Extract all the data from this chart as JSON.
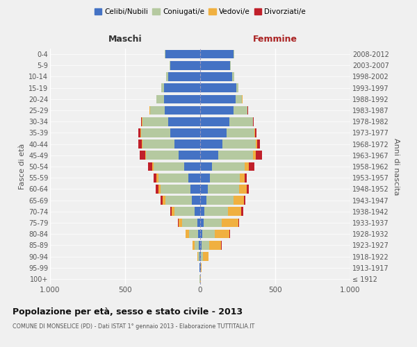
{
  "age_groups": [
    "100+",
    "95-99",
    "90-94",
    "85-89",
    "80-84",
    "75-79",
    "70-74",
    "65-69",
    "60-64",
    "55-59",
    "50-54",
    "45-49",
    "40-44",
    "35-39",
    "30-34",
    "25-29",
    "20-24",
    "15-19",
    "10-14",
    "5-9",
    "0-4"
  ],
  "birth_years": [
    "≤ 1912",
    "1913-1917",
    "1918-1922",
    "1923-1927",
    "1928-1932",
    "1933-1937",
    "1938-1942",
    "1943-1947",
    "1948-1952",
    "1953-1957",
    "1958-1962",
    "1963-1967",
    "1968-1972",
    "1973-1977",
    "1978-1982",
    "1983-1987",
    "1988-1992",
    "1993-1997",
    "1998-2002",
    "2003-2007",
    "2008-2012"
  ],
  "colors": {
    "celibi": "#4472c4",
    "coniugati": "#b5c9a0",
    "vedovi": "#f0b040",
    "divorziati": "#c0202a"
  },
  "males": {
    "celibi": [
      2,
      3,
      5,
      8,
      15,
      20,
      35,
      55,
      65,
      80,
      105,
      145,
      170,
      200,
      215,
      235,
      240,
      240,
      215,
      200,
      230
    ],
    "coniugati": [
      1,
      2,
      10,
      30,
      60,
      100,
      135,
      175,
      200,
      200,
      205,
      215,
      215,
      195,
      170,
      100,
      50,
      20,
      10,
      5,
      5
    ],
    "vedovi": [
      0,
      1,
      5,
      15,
      20,
      25,
      20,
      20,
      15,
      10,
      10,
      8,
      5,
      3,
      2,
      1,
      1,
      0,
      0,
      0,
      0
    ],
    "divorziati": [
      0,
      0,
      0,
      0,
      1,
      3,
      10,
      15,
      15,
      20,
      25,
      35,
      20,
      12,
      8,
      3,
      1,
      0,
      0,
      0,
      0
    ]
  },
  "females": {
    "celibi": [
      1,
      3,
      5,
      10,
      15,
      25,
      30,
      40,
      50,
      65,
      80,
      120,
      150,
      175,
      195,
      220,
      235,
      240,
      215,
      200,
      220
    ],
    "coniugati": [
      1,
      3,
      15,
      50,
      80,
      120,
      155,
      180,
      210,
      200,
      215,
      230,
      220,
      185,
      155,
      95,
      45,
      15,
      10,
      5,
      5
    ],
    "vedovi": [
      1,
      5,
      35,
      80,
      100,
      110,
      90,
      70,
      50,
      30,
      30,
      20,
      10,
      5,
      3,
      2,
      1,
      0,
      0,
      0,
      0
    ],
    "divorziati": [
      0,
      0,
      1,
      2,
      3,
      5,
      10,
      12,
      15,
      15,
      35,
      40,
      20,
      8,
      5,
      2,
      1,
      0,
      0,
      0,
      0
    ]
  },
  "title": "Popolazione per età, sesso e stato civile - 2013",
  "subtitle": "COMUNE DI MONSELICE (PD) - Dati ISTAT 1° gennaio 2013 - Elaborazione TUTTITALIA.IT",
  "xlabel_left": "Maschi",
  "xlabel_right": "Femmine",
  "ylabel_left": "Fasce di età",
  "ylabel_right": "Anni di nascita",
  "xlim": 1000,
  "legend_labels": [
    "Celibi/Nubili",
    "Coniugati/e",
    "Vedovi/e",
    "Divorziati/e"
  ],
  "bg_color": "#f0f0f0"
}
